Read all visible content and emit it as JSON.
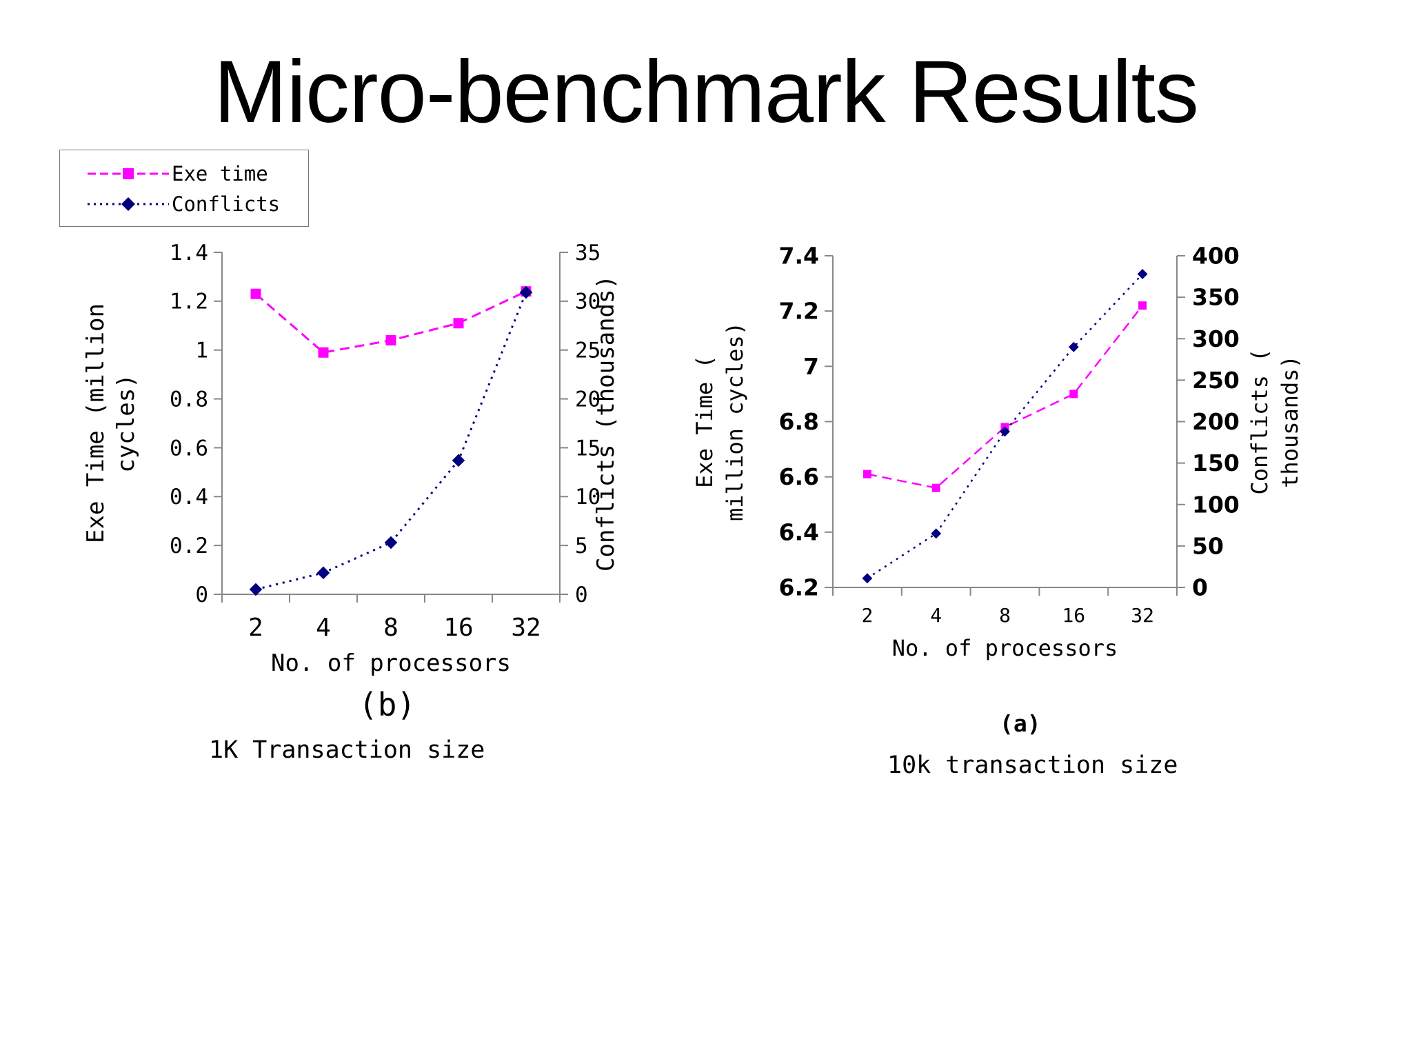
{
  "slide": {
    "title": "Micro-benchmark Results"
  },
  "legend": {
    "items": [
      {
        "label": "Exe time",
        "color": "#ff00ff",
        "marker": "square"
      },
      {
        "label": "Conflicts",
        "color": "#000080",
        "marker": "diamond"
      }
    ]
  },
  "chart_data": [
    {
      "type": "line",
      "id": "b",
      "caption_letter": "(b)",
      "caption": "1K Transaction size",
      "categories": [
        "2",
        "4",
        "8",
        "16",
        "32"
      ],
      "xlabel": "No. of processors",
      "ylabel_left": "Exe Time (million cycles)",
      "ylabel_right": "Conflicts (thousands)",
      "ylim_left": [
        0,
        1.4
      ],
      "yticks_left": [
        "0",
        "0.2",
        "0.4",
        "0.6",
        "0.8",
        "1",
        "1.2",
        "1.4"
      ],
      "ylim_right": [
        0,
        35
      ],
      "yticks_right": [
        "0",
        "5",
        "10",
        "15",
        "20",
        "25",
        "30",
        "35"
      ],
      "series": [
        {
          "name": "Exe time",
          "axis": "left",
          "values": [
            1.23,
            0.99,
            1.04,
            1.11,
            1.24
          ],
          "color": "#ff00ff",
          "marker": "square",
          "dash": "dashed"
        },
        {
          "name": "Conflicts",
          "axis": "right",
          "values": [
            0.5,
            2.2,
            5.3,
            13.7,
            30.9
          ],
          "color": "#000080",
          "marker": "diamond",
          "dash": "dotted"
        }
      ]
    },
    {
      "type": "line",
      "id": "a",
      "caption_letter": "(a)",
      "caption": "10k transaction size",
      "categories": [
        "2",
        "4",
        "8",
        "16",
        "32"
      ],
      "xlabel": "No. of processors",
      "ylabel_left": "Exe Time ( million cycles)",
      "ylabel_right": "Conflicts ( thousands)",
      "ylim_left": [
        6.2,
        7.4
      ],
      "yticks_left": [
        "6.2",
        "6.4",
        "6.6",
        "6.8",
        "7",
        "7.2",
        "7.4"
      ],
      "ylim_right": [
        0,
        400
      ],
      "yticks_right": [
        "0",
        "50",
        "100",
        "150",
        "200",
        "250",
        "300",
        "350",
        "400"
      ],
      "series": [
        {
          "name": "Exe time",
          "axis": "left",
          "values": [
            6.61,
            6.56,
            6.78,
            6.9,
            7.22
          ],
          "color": "#ff00ff",
          "marker": "square",
          "dash": "dashed"
        },
        {
          "name": "Conflicts",
          "axis": "right",
          "values": [
            11,
            65,
            188,
            290,
            378
          ],
          "color": "#000080",
          "marker": "diamond",
          "dash": "dotted"
        }
      ]
    }
  ]
}
